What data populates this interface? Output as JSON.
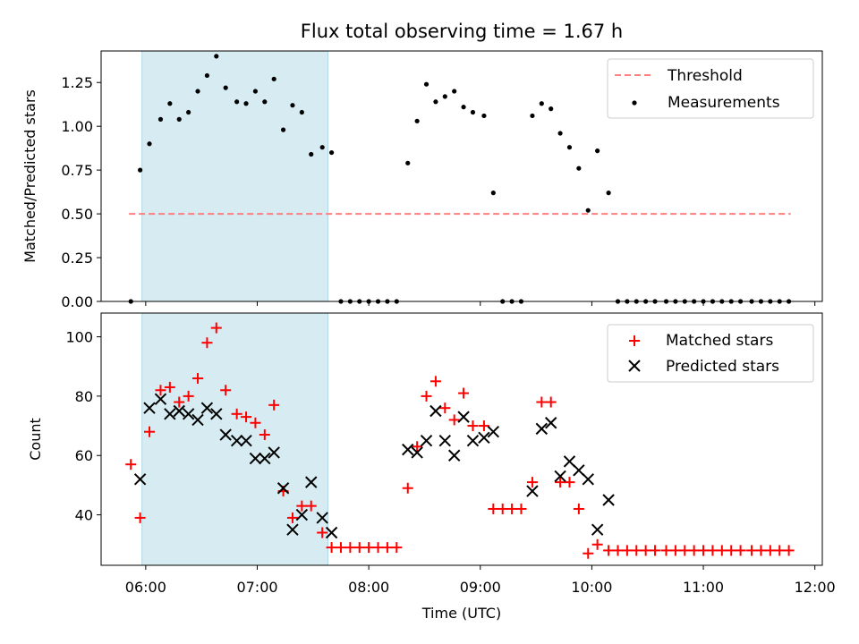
{
  "figure": {
    "title": "Flux total observing time = 1.67 h",
    "xlabel": "Time (UTC)"
  },
  "chart_data": [
    {
      "type": "scatter",
      "title": "Flux total observing time = 1.67 h",
      "ylabel": "Matched/Predicted stars",
      "ylim": [
        0,
        1.43
      ],
      "xlim": [
        "05:36",
        "12:04"
      ],
      "y_ticks": [
        "0.00",
        "0.25",
        "0.50",
        "0.75",
        "1.00",
        "1.25"
      ],
      "legend_position": "top-right",
      "shaded_interval": [
        "05:58",
        "07:38"
      ],
      "threshold": {
        "name": "Threshold",
        "value": 0.5,
        "x_range": [
          "05:51",
          "11:47"
        ],
        "color": "#ff7f7f",
        "style": "dashed"
      },
      "series": [
        {
          "name": "Measurements",
          "color": "#000000",
          "marker": "dot",
          "x": [
            "05:52",
            "05:57",
            "06:02",
            "06:08",
            "06:13",
            "06:18",
            "06:23",
            "06:28",
            "06:33",
            "06:38",
            "06:43",
            "06:49",
            "06:54",
            "06:59",
            "07:04",
            "07:09",
            "07:14",
            "07:19",
            "07:24",
            "07:29",
            "07:35",
            "07:40",
            "07:45",
            "07:50",
            "07:55",
            "08:00",
            "08:05",
            "08:10",
            "08:15",
            "08:21",
            "08:26",
            "08:31",
            "08:36",
            "08:41",
            "08:46",
            "08:51",
            "08:56",
            "09:02",
            "09:07",
            "09:12",
            "09:17",
            "09:22",
            "09:28",
            "09:33",
            "09:38",
            "09:43",
            "09:48",
            "09:53",
            "09:58",
            "10:03",
            "10:09",
            "10:14",
            "10:19",
            "10:24",
            "10:29",
            "10:34",
            "10:40",
            "10:45",
            "10:50",
            "10:55",
            "11:00",
            "11:05",
            "11:10",
            "11:15",
            "11:20",
            "11:26",
            "11:31",
            "11:36",
            "11:41",
            "11:46"
          ],
          "y": [
            0.0,
            0.75,
            0.9,
            1.04,
            1.13,
            1.04,
            1.08,
            1.2,
            1.29,
            1.4,
            1.22,
            1.14,
            1.13,
            1.2,
            1.14,
            1.27,
            0.98,
            1.12,
            1.08,
            0.84,
            0.88,
            0.85,
            0.0,
            0.0,
            0.0,
            0.0,
            0.0,
            0.0,
            0.0,
            0.79,
            1.03,
            1.24,
            1.14,
            1.17,
            1.2,
            1.11,
            1.08,
            1.06,
            0.62,
            0.0,
            0.0,
            0.0,
            1.06,
            1.13,
            1.1,
            0.96,
            0.88,
            0.76,
            0.52,
            0.86,
            0.62,
            0.0,
            0.0,
            0.0,
            0.0,
            0.0,
            0.0,
            0.0,
            0.0,
            0.0,
            0.0,
            0.0,
            0.0,
            0.0,
            0.0,
            0.0,
            0.0,
            0.0,
            0.0,
            0.0
          ]
        }
      ]
    },
    {
      "type": "scatter",
      "ylabel": "Count",
      "xlabel": "Time (UTC)",
      "ylim": [
        23,
        108
      ],
      "xlim": [
        "05:36",
        "12:04"
      ],
      "y_ticks": [
        "40",
        "60",
        "80",
        "100"
      ],
      "x_ticks": [
        "06:00",
        "07:00",
        "08:00",
        "09:00",
        "10:00",
        "11:00",
        "12:00"
      ],
      "legend_position": "top-right",
      "shaded_interval": [
        "05:58",
        "07:38"
      ],
      "series": [
        {
          "name": "Matched stars",
          "color": "#ff0000",
          "marker": "plus",
          "x": [
            "05:52",
            "05:57",
            "06:02",
            "06:08",
            "06:13",
            "06:18",
            "06:23",
            "06:28",
            "06:33",
            "06:38",
            "06:43",
            "06:49",
            "06:54",
            "06:59",
            "07:04",
            "07:09",
            "07:14",
            "07:19",
            "07:24",
            "07:29",
            "07:35",
            "07:40",
            "07:45",
            "07:50",
            "07:55",
            "08:00",
            "08:05",
            "08:10",
            "08:15",
            "08:21",
            "08:26",
            "08:31",
            "08:36",
            "08:41",
            "08:46",
            "08:51",
            "08:56",
            "09:02",
            "09:07",
            "09:12",
            "09:17",
            "09:22",
            "09:28",
            "09:33",
            "09:38",
            "09:43",
            "09:48",
            "09:53",
            "09:58",
            "10:03",
            "10:09",
            "10:14",
            "10:19",
            "10:24",
            "10:29",
            "10:34",
            "10:40",
            "10:45",
            "10:50",
            "10:55",
            "11:00",
            "11:05",
            "11:10",
            "11:15",
            "11:20",
            "11:26",
            "11:31",
            "11:36",
            "11:41",
            "11:46"
          ],
          "y": [
            57,
            39,
            68,
            82,
            83,
            78,
            80,
            86,
            98,
            103,
            82,
            74,
            73,
            71,
            67,
            77,
            48,
            39,
            43,
            43,
            34,
            29,
            29,
            29,
            29,
            29,
            29,
            29,
            29,
            49,
            63,
            80,
            85,
            76,
            72,
            81,
            70,
            70,
            42,
            42,
            42,
            42,
            51,
            78,
            78,
            51,
            51,
            42,
            27,
            30,
            28,
            28,
            28,
            28,
            28,
            28,
            28,
            28,
            28,
            28,
            28,
            28,
            28,
            28,
            28,
            28,
            28,
            28,
            28,
            28
          ]
        },
        {
          "name": "Predicted stars",
          "color": "#000000",
          "marker": "x",
          "x": [
            "05:57",
            "06:02",
            "06:08",
            "06:13",
            "06:18",
            "06:23",
            "06:28",
            "06:33",
            "06:38",
            "06:43",
            "06:49",
            "06:54",
            "06:59",
            "07:04",
            "07:09",
            "07:14",
            "07:19",
            "07:24",
            "07:29",
            "07:35",
            "07:40",
            "08:21",
            "08:26",
            "08:31",
            "08:36",
            "08:41",
            "08:46",
            "08:51",
            "08:56",
            "09:02",
            "09:07",
            "09:28",
            "09:33",
            "09:38",
            "09:43",
            "09:48",
            "09:53",
            "09:58",
            "10:03",
            "10:09"
          ],
          "y": [
            52,
            76,
            79,
            74,
            75,
            74,
            72,
            76,
            74,
            67,
            65,
            65,
            59,
            59,
            61,
            49,
            35,
            40,
            51,
            39,
            34,
            62,
            61,
            65,
            75,
            65,
            60,
            73,
            65,
            66,
            68,
            48,
            69,
            71,
            53,
            58,
            55,
            52,
            35,
            45
          ]
        }
      ]
    }
  ]
}
